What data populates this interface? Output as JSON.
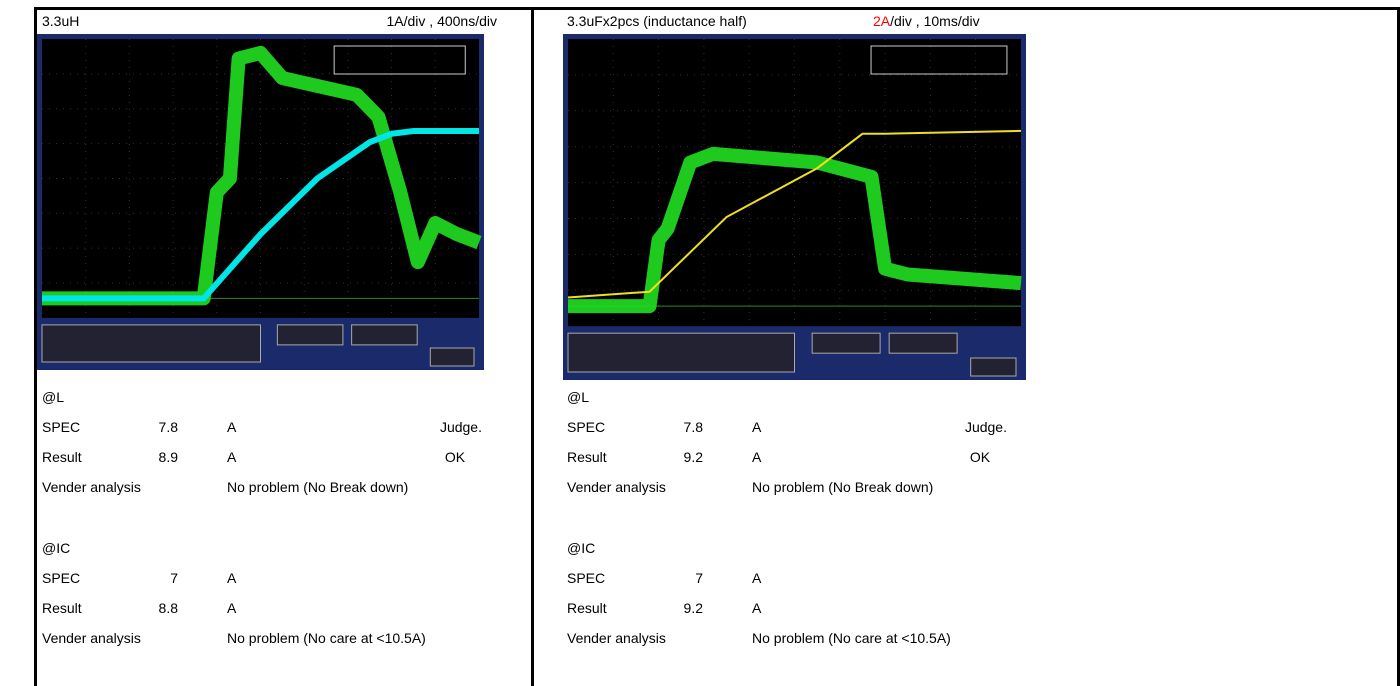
{
  "panels": [
    {
      "title": "3.3uH",
      "scale_value": "1A",
      "scale_rest": "/div , 400ns/div",
      "scale_value_color": "#000000",
      "trace_color": "#00e5e5",
      "sections": [
        {
          "label": "@L",
          "spec": {
            "label": "SPEC",
            "value": 7.8,
            "unit": "A",
            "judge": "Judge."
          },
          "result": {
            "label": "Result",
            "value": 8.9,
            "unit": "A",
            "judge": "OK"
          },
          "vender": {
            "label": "Vender analysis",
            "text": "No problem (No Break down)"
          }
        },
        {
          "label": "@IC",
          "spec": {
            "label": "SPEC",
            "value": 7,
            "unit": "A"
          },
          "result": {
            "label": "Result",
            "value": 8.8,
            "unit": "A"
          },
          "vender": {
            "label": "Vender analysis",
            "text": "No problem (No care at <10.5A)"
          }
        }
      ]
    },
    {
      "title": "3.3uFx2pcs (inductance half)",
      "scale_value": "2A",
      "scale_rest": "/div , 10ms/div",
      "scale_value_color": "#ff0000",
      "trace_color": "#f0e020",
      "sections": [
        {
          "label": "@L",
          "spec": {
            "label": "SPEC",
            "value": 7.8,
            "unit": "A",
            "judge": "Judge."
          },
          "result": {
            "label": "Result",
            "value": 9.2,
            "unit": "A",
            "judge": "OK"
          },
          "vender": {
            "label": "Vender analysis",
            "text": "No problem (No Break down)"
          }
        },
        {
          "label": "@IC",
          "spec": {
            "label": "SPEC",
            "value": 7,
            "unit": "A"
          },
          "result": {
            "label": "Result",
            "value": 9.2,
            "unit": "A"
          },
          "vender": {
            "label": "Vender analysis",
            "text": "No problem (No care at <10.5A)"
          }
        }
      ]
    }
  ]
}
